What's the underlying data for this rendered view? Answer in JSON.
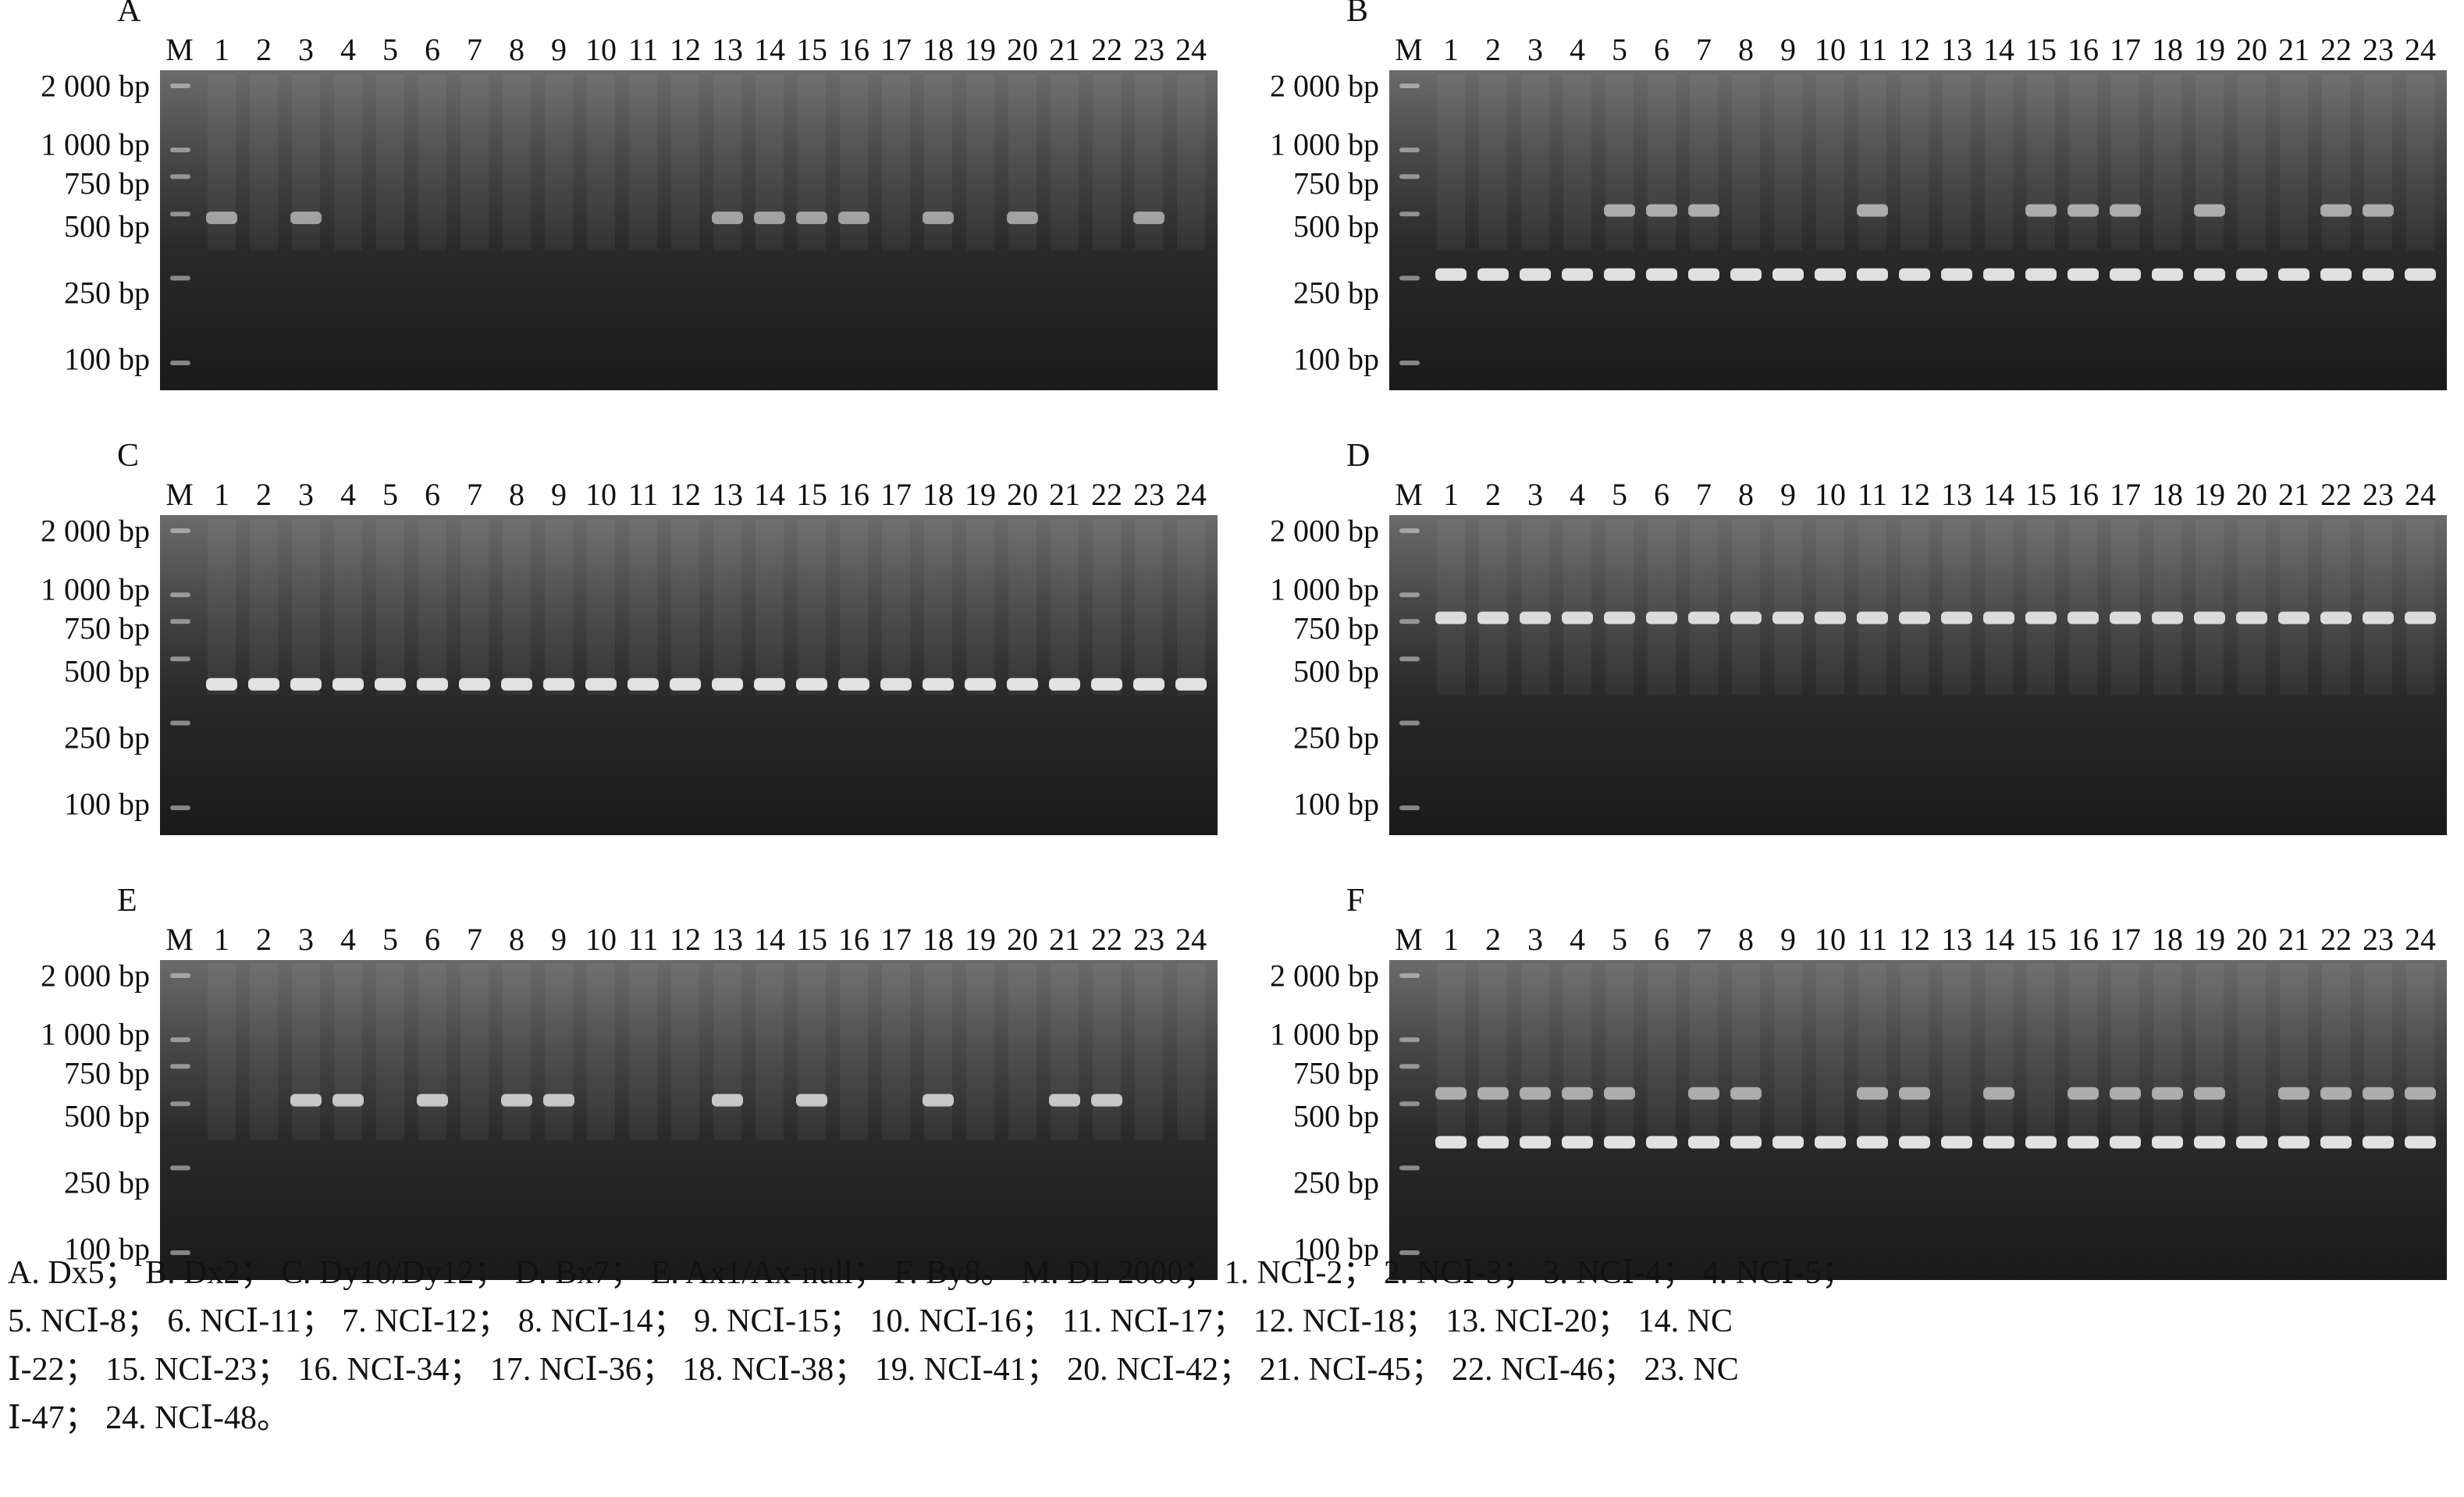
{
  "lane_labels": [
    "M",
    "1",
    "2",
    "3",
    "4",
    "5",
    "6",
    "7",
    "8",
    "9",
    "10",
    "11",
    "12",
    "13",
    "14",
    "15",
    "16",
    "17",
    "18",
    "19",
    "20",
    "21",
    "22",
    "23",
    "24"
  ],
  "marker_sizes": [
    "2 000 bp",
    "1 000 bp",
    "750 bp",
    "500 bp",
    "250 bp",
    "100 bp"
  ],
  "marker_bp": [
    2000,
    1000,
    750,
    500,
    250,
    100
  ],
  "panels": [
    {
      "letter": "A",
      "col": 0,
      "row": 0
    },
    {
      "letter": "B",
      "col": 1,
      "row": 0
    },
    {
      "letter": "C",
      "col": 0,
      "row": 1
    },
    {
      "letter": "D",
      "col": 1,
      "row": 1
    },
    {
      "letter": "E",
      "col": 0,
      "row": 2
    },
    {
      "letter": "F",
      "col": 1,
      "row": 2
    }
  ],
  "caption": {
    "line1": "A. Dx5； B. Dx2； C. Dy10/Dy12； D. Bx7； E. Ax1/Ax-null； F. By8。 M. DL 2000； 1. NCⅠ-2； 2. NCⅠ-3； 3. NCⅠ-4； 4. NCⅠ-5；",
    "line2": "5. NCⅠ-8； 6. NCⅠ-11； 7. NCⅠ-12； 8. NCⅠ-14； 9. NCⅠ-15； 10. NCⅠ-16； 11. NCⅠ-17； 12. NCⅠ-18； 13. NCⅠ-20； 14. NC",
    "line3": "Ⅰ-22； 15. NCⅠ-23； 16. NCⅠ-34； 17. NCⅠ-36； 18. NCⅠ-38； 19. NCⅠ-41； 20. NCⅠ-42； 21. NCⅠ-45； 22. NCⅠ-46； 23. NC",
    "line4": "Ⅰ-47； 24. NCⅠ-48。"
  }
}
